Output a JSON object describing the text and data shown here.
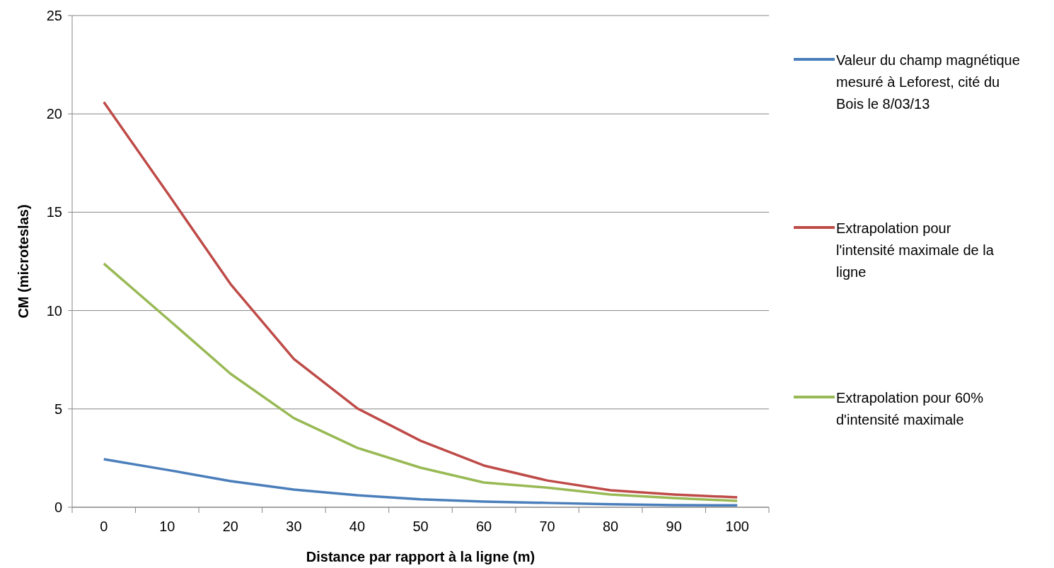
{
  "chart_data": {
    "type": "line",
    "xlabel": "Distance par rapport à la ligne (m)",
    "ylabel": "CM (microteslas)",
    "categories": [
      "0",
      "10",
      "20",
      "30",
      "40",
      "50",
      "60",
      "70",
      "80",
      "90",
      "100"
    ],
    "series": [
      {
        "name": "Valeur du champ magnétique mesuré à Leforest, cité du Bois le 8/03/13",
        "color": "#4a7ebb",
        "values": [
          2.44,
          1.9,
          1.33,
          0.9,
          0.61,
          0.4,
          0.29,
          0.22,
          0.15,
          0.11,
          0.1
        ]
      },
      {
        "name": "Extrapolation pour l'intensité maximale de la ligne",
        "color": "#be4b48",
        "values": [
          20.6,
          16.0,
          11.35,
          7.54,
          5.03,
          3.38,
          2.12,
          1.36,
          0.86,
          0.65,
          0.5
        ]
      },
      {
        "name": "Extrapolation pour 60% d'intensité maximale",
        "color": "#98b954",
        "values": [
          12.39,
          9.6,
          6.79,
          4.53,
          3.02,
          2.01,
          1.26,
          1.0,
          0.65,
          0.47,
          0.32
        ]
      }
    ],
    "ylim": [
      0,
      25
    ],
    "yticks": [
      0,
      5,
      10,
      15,
      20,
      25
    ],
    "grid": "y",
    "legend": "right",
    "marker": "none",
    "line_style": "solid"
  }
}
